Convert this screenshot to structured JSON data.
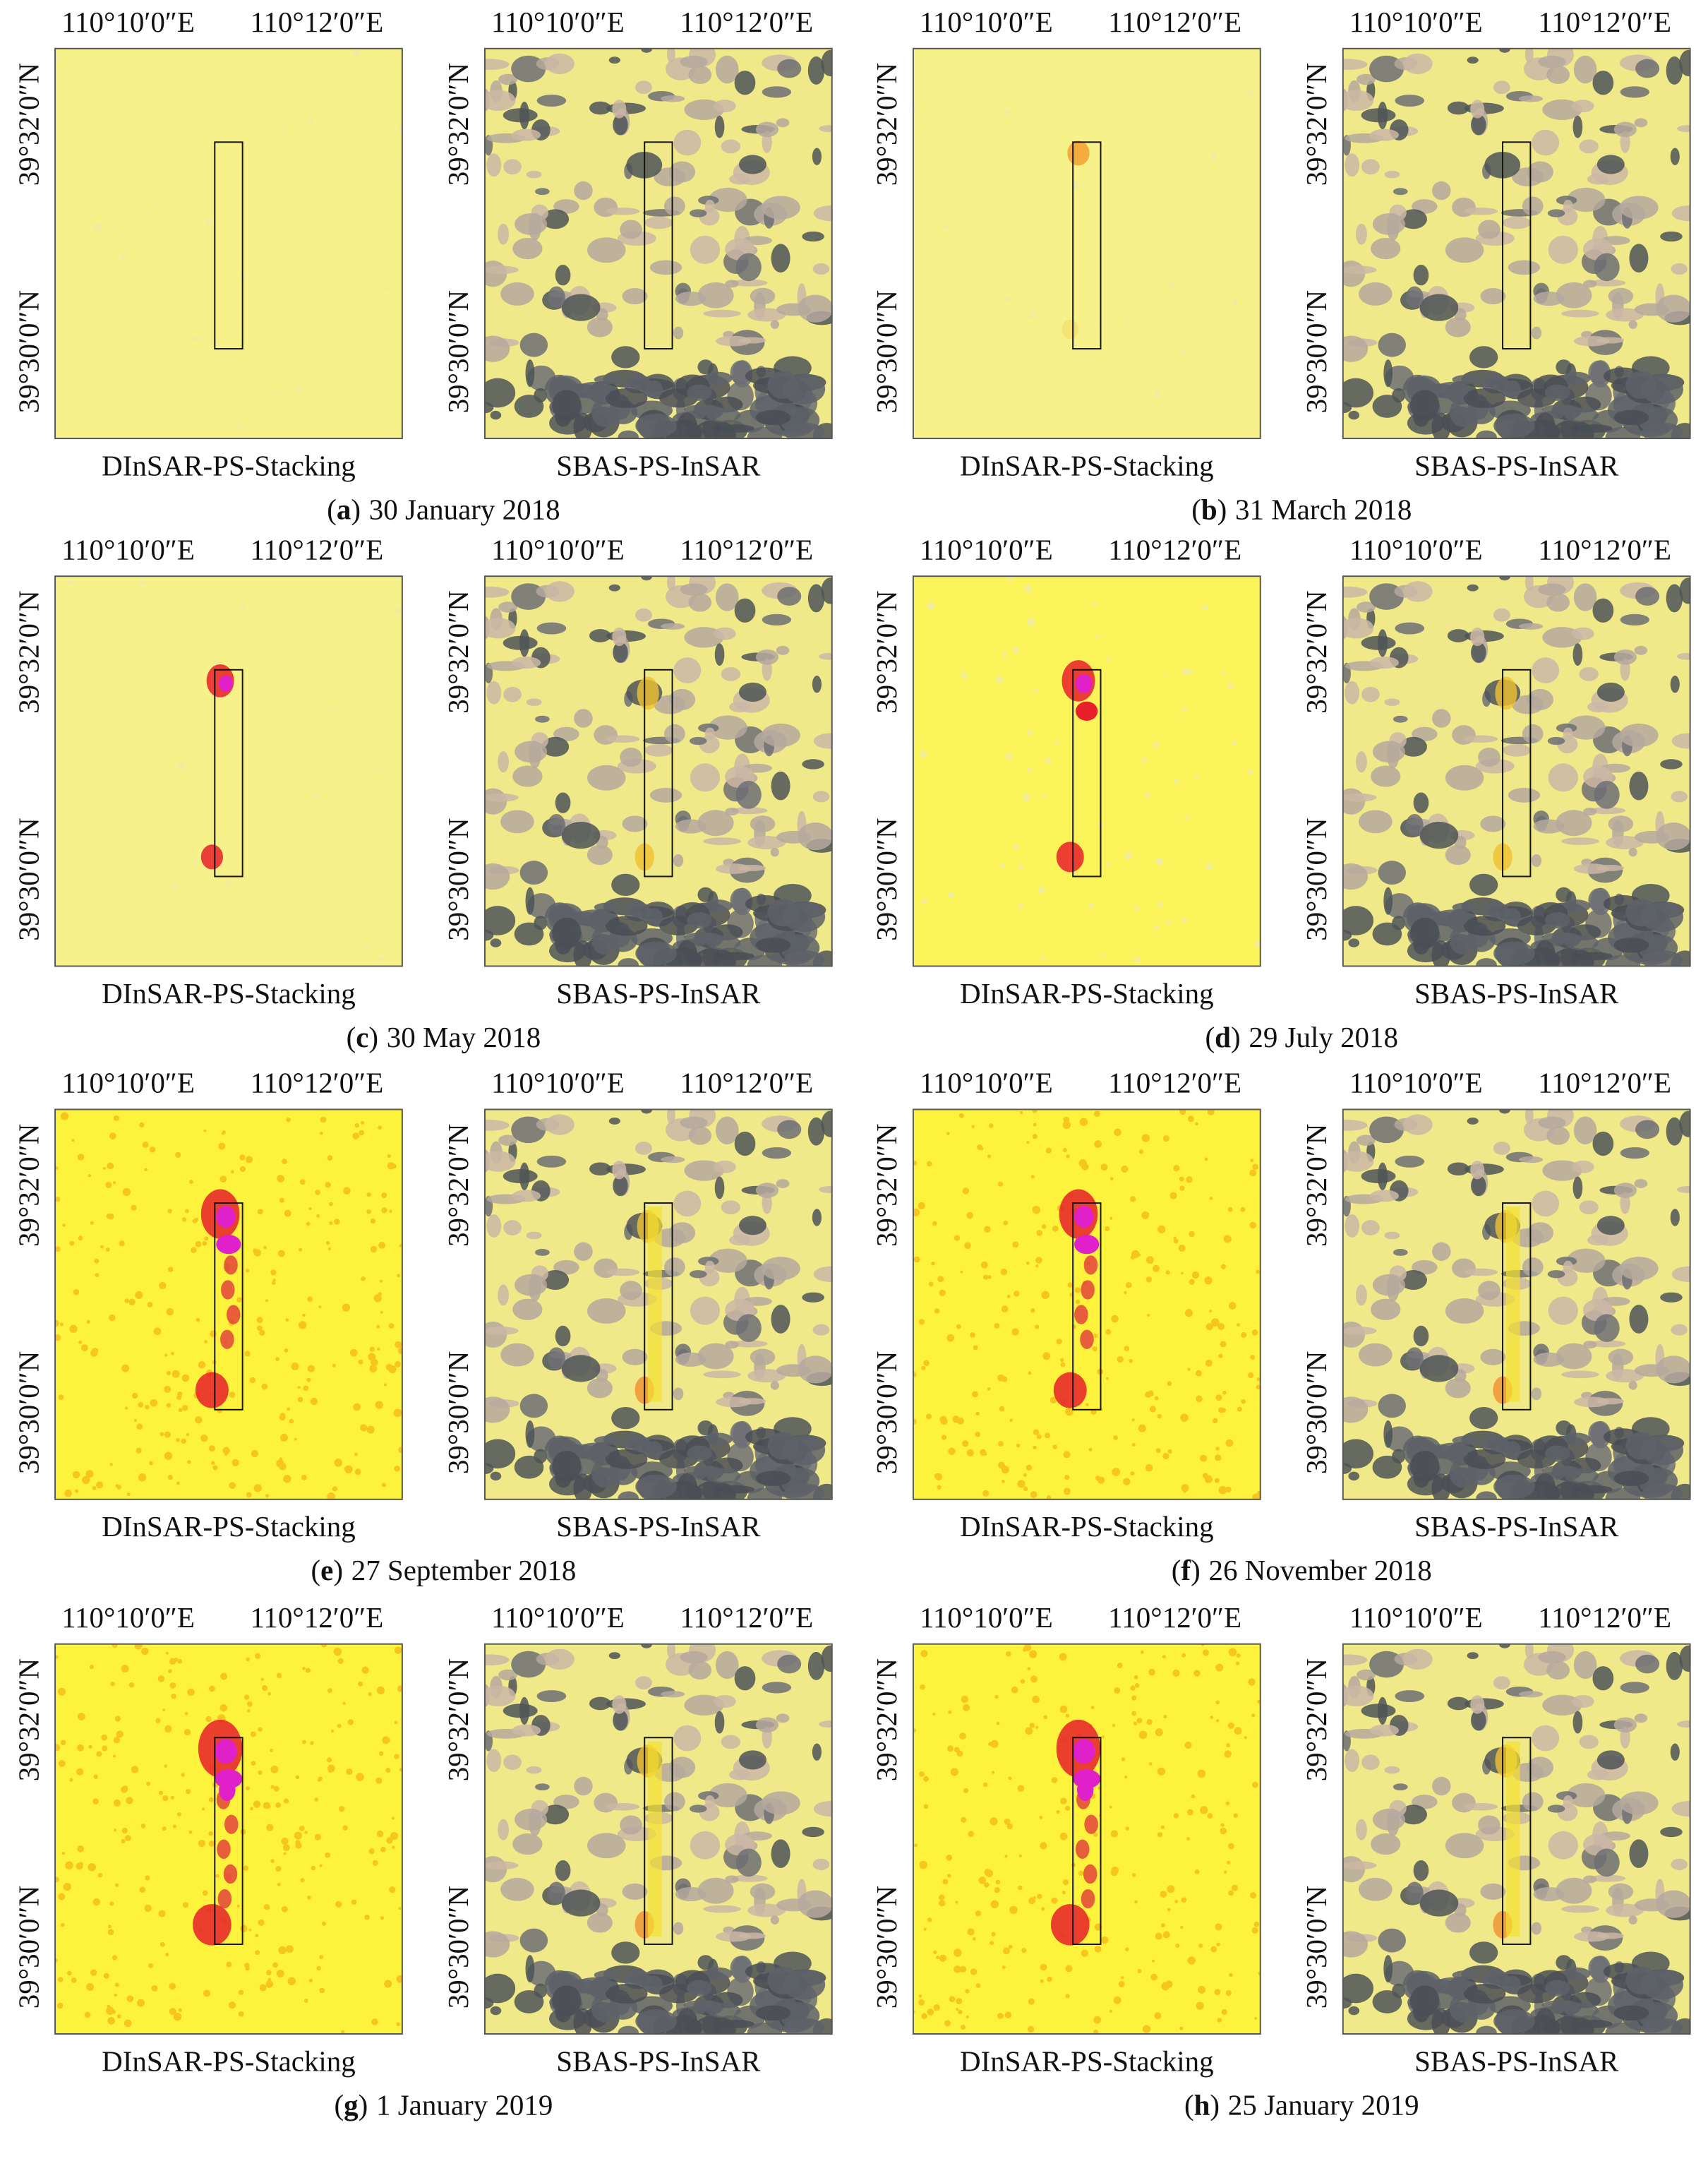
{
  "panels": [
    {
      "open": "(",
      "letter": "a",
      "close": ")",
      "date": "30 January 2018",
      "maps": [
        {
          "method": "DInSAR-PS-Stacking",
          "lon_labels": [
            "110°10′0″E",
            "110°12′0″E"
          ],
          "lat_labels": [
            "39°32′0″N",
            "39°30′0″N"
          ]
        },
        {
          "method": "SBAS-PS-InSAR",
          "lon_labels": [
            "110°10′0″E",
            "110°12′0″E"
          ],
          "lat_labels": [
            "39°32′0″N",
            "39°30′0″N"
          ]
        }
      ]
    },
    {
      "open": "(",
      "letter": "b",
      "close": ")",
      "date": "31 March 2018",
      "maps": [
        {
          "method": "DInSAR-PS-Stacking",
          "lon_labels": [
            "110°10′0″E",
            "110°12′0″E"
          ],
          "lat_labels": [
            "39°32′0″N",
            "39°30′0″N"
          ]
        },
        {
          "method": "SBAS-PS-InSAR",
          "lon_labels": [
            "110°10′0″E",
            "110°12′0″E"
          ],
          "lat_labels": [
            "39°32′0″N",
            "39°30′0″N"
          ]
        }
      ]
    },
    {
      "open": "(",
      "letter": "c",
      "close": ")",
      "date": "30 May 2018",
      "maps": [
        {
          "method": "DInSAR-PS-Stacking",
          "lon_labels": [
            "110°10′0″E",
            "110°12′0″E"
          ],
          "lat_labels": [
            "39°32′0″N",
            "39°30′0″N"
          ]
        },
        {
          "method": "SBAS-PS-InSAR",
          "lon_labels": [
            "110°10′0″E",
            "110°12′0″E"
          ],
          "lat_labels": [
            "39°32′0″N",
            "39°30′0″N"
          ]
        }
      ]
    },
    {
      "open": "(",
      "letter": "d",
      "close": ")",
      "date": "29 July 2018",
      "maps": [
        {
          "method": "DInSAR-PS-Stacking",
          "lon_labels": [
            "110°10′0″E",
            "110°12′0″E"
          ],
          "lat_labels": [
            "39°32′0″N",
            "39°30′0″N"
          ]
        },
        {
          "method": "SBAS-PS-InSAR",
          "lon_labels": [
            "110°10′0″E",
            "110°12′0″E"
          ],
          "lat_labels": [
            "39°32′0″N",
            "39°30′0″N"
          ]
        }
      ]
    },
    {
      "open": "(",
      "letter": "e",
      "close": ")",
      "date": "27 September 2018",
      "maps": [
        {
          "method": "DInSAR-PS-Stacking",
          "lon_labels": [
            "110°10′0″E",
            "110°12′0″E"
          ],
          "lat_labels": [
            "39°32′0″N",
            "39°30′0″N"
          ]
        },
        {
          "method": "SBAS-PS-InSAR",
          "lon_labels": [
            "110°10′0″E",
            "110°12′0″E"
          ],
          "lat_labels": [
            "39°32′0″N",
            "39°30′0″N"
          ]
        }
      ]
    },
    {
      "open": "(",
      "letter": "f",
      "close": ")",
      "date": "26 November 2018",
      "maps": [
        {
          "method": "DInSAR-PS-Stacking",
          "lon_labels": [
            "110°10′0″E",
            "110°12′0″E"
          ],
          "lat_labels": [
            "39°32′0″N",
            "39°30′0″N"
          ]
        },
        {
          "method": "SBAS-PS-InSAR",
          "lon_labels": [
            "110°10′0″E",
            "110°12′0″E"
          ],
          "lat_labels": [
            "39°32′0″N",
            "39°30′0″N"
          ]
        }
      ]
    },
    {
      "open": "(",
      "letter": "g",
      "close": ")",
      "date": "1 January 2019",
      "maps": [
        {
          "method": "DInSAR-PS-Stacking",
          "lon_labels": [
            "110°10′0″E",
            "110°12′0″E"
          ],
          "lat_labels": [
            "39°32′0″N",
            "39°30′0″N"
          ]
        },
        {
          "method": "SBAS-PS-InSAR",
          "lon_labels": [
            "110°10′0″E",
            "110°12′0″E"
          ],
          "lat_labels": [
            "39°32′0″N",
            "39°30′0″N"
          ]
        }
      ]
    },
    {
      "open": "(",
      "letter": "h",
      "close": ")",
      "date": "25 January 2019",
      "maps": [
        {
          "method": "DInSAR-PS-Stacking",
          "lon_labels": [
            "110°10′0″E",
            "110°12′0″E"
          ],
          "lat_labels": [
            "39°32′0″N",
            "39°30′0″N"
          ]
        },
        {
          "method": "SBAS-PS-InSAR",
          "lon_labels": [
            "110°10′0″E",
            "110°12′0″E"
          ],
          "lat_labels": [
            "39°32′0″N",
            "39°30′0″N"
          ]
        }
      ]
    }
  ]
}
